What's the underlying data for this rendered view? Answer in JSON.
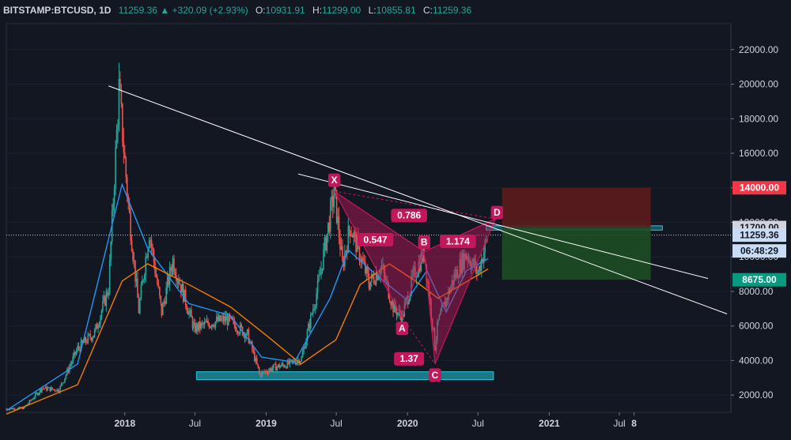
{
  "header": {
    "symbol": "BITSTAMP:BTCUSD, 1D",
    "last": "11259.36",
    "change_arrow": "▲",
    "change": "+320.09 (+2.93%)",
    "o_label": "O:",
    "o_value": "10931.91",
    "h_label": "H:",
    "h_value": "11299.00",
    "l_label": "L:",
    "l_value": "10855.81",
    "c_label": "C:",
    "c_value": "11259.36"
  },
  "colors": {
    "background": "#131722",
    "up": "#26a69a",
    "down": "#ef5350",
    "pattern": "#c2185b",
    "support_zone": "#26c6da",
    "stop_zone": "#5d1b1b",
    "target_zone": "#1e4d24",
    "trendline": "#ffffff",
    "ma_fast": "#2196f3",
    "ma_slow": "#f57c00"
  },
  "chart_data": {
    "type": "line",
    "title": "",
    "xlabel": "",
    "ylabel": "",
    "ylim": [
      1000,
      23500
    ],
    "y_ticks": [
      "2000.00",
      "4000.00",
      "6000.00",
      "8000.00",
      "10000.00",
      "12000.00",
      "14000.00",
      "16000.00",
      "18000.00",
      "20000.00",
      "22000.00"
    ],
    "x_ticks": [
      {
        "label": "2018",
        "date": "2018-01-01",
        "bold": true
      },
      {
        "label": "Jul",
        "date": "2018-07-01",
        "bold": false
      },
      {
        "label": "2019",
        "date": "2019-01-01",
        "bold": true
      },
      {
        "label": "Jul",
        "date": "2019-07-01",
        "bold": false
      },
      {
        "label": "2020",
        "date": "2020-01-01",
        "bold": true
      },
      {
        "label": "Jul",
        "date": "2020-07-01",
        "bold": false
      },
      {
        "label": "2021",
        "date": "2021-01-01",
        "bold": true
      },
      {
        "label": "Jul",
        "date": "2021-07-01",
        "bold": false
      },
      {
        "label": "8",
        "date": "2021-08-08",
        "bold": true
      }
    ],
    "x_range": [
      "2017-03-01",
      "2022-04-15"
    ],
    "series": [
      {
        "type": "candles",
        "x": [
          "2017-03-01",
          "2017-04-15",
          "2017-06-01",
          "2017-07-15",
          "2017-09-01",
          "2017-10-15",
          "2017-11-20",
          "2017-12-17",
          "2018-01-10",
          "2018-02-06",
          "2018-03-05",
          "2018-04-06",
          "2018-05-05",
          "2018-06-29",
          "2018-08-14",
          "2018-09-20",
          "2018-11-14",
          "2018-12-15",
          "2019-01-20",
          "2019-02-28",
          "2019-04-02",
          "2019-05-14",
          "2019-06-26",
          "2019-07-17",
          "2019-08-06",
          "2019-09-24",
          "2019-10-26",
          "2019-11-25",
          "2019-12-18",
          "2020-01-15",
          "2020-02-13",
          "2020-03-12",
          "2020-03-20",
          "2020-04-30",
          "2020-06-01",
          "2020-07-01",
          "2020-07-27"
        ],
        "close": [
          1200,
          1250,
          2400,
          2300,
          4700,
          5600,
          8200,
          19700,
          13000,
          6900,
          11500,
          6800,
          9800,
          5850,
          6200,
          6400,
          5500,
          3200,
          3600,
          3800,
          4100,
          8200,
          13800,
          9500,
          11800,
          8500,
          9400,
          7100,
          6500,
          8800,
          10300,
          4800,
          6200,
          8800,
          10200,
          9100,
          11259
        ]
      },
      {
        "name": "",
        "type": "ma_fast",
        "x": [
          "2017-03-01",
          "2017-09-01",
          "2017-12-25",
          "2018-03-01",
          "2018-06-15",
          "2018-10-01",
          "2018-12-20",
          "2019-03-15",
          "2019-06-15",
          "2019-08-01",
          "2019-10-15",
          "2019-12-31",
          "2020-02-20",
          "2020-04-10",
          "2020-06-01",
          "2020-07-27"
        ],
        "values": [
          1100,
          3800,
          14200,
          10500,
          7300,
          6600,
          4200,
          3900,
          7600,
          10400,
          8900,
          7500,
          9200,
          6800,
          9200,
          9900
        ]
      },
      {
        "name": "",
        "type": "ma_slow",
        "x": [
          "2017-03-01",
          "2017-09-01",
          "2017-12-25",
          "2018-03-01",
          "2018-06-15",
          "2018-10-01",
          "2019-01-10",
          "2019-04-01",
          "2019-06-30",
          "2019-09-01",
          "2019-11-15",
          "2020-01-15",
          "2020-03-20",
          "2020-05-20",
          "2020-07-27"
        ],
        "values": [
          900,
          2600,
          8600,
          9600,
          8400,
          7100,
          5300,
          3800,
          5200,
          8400,
          9600,
          8700,
          7600,
          8400,
          9300
        ]
      }
    ],
    "harmonic_pattern": {
      "points": [
        {
          "label": "X",
          "date": "2019-06-26",
          "value": 13800
        },
        {
          "label": "A",
          "date": "2019-12-18",
          "value": 6500
        },
        {
          "label": "B",
          "date": "2020-02-13",
          "value": 10300
        },
        {
          "label": "C",
          "date": "2020-03-12",
          "value": 3800
        },
        {
          "label": "D",
          "date": "2020-08-15",
          "value": 12200
        }
      ],
      "ratios": [
        {
          "label": "0.547",
          "date": "2019-10-10",
          "value": 11000
        },
        {
          "label": "0.786",
          "date": "2020-01-05",
          "value": 12400
        },
        {
          "label": "1.37",
          "date": "2020-01-05",
          "value": 4100
        },
        {
          "label": "1.174",
          "date": "2020-05-10",
          "value": 10900
        }
      ]
    },
    "trendlines": [
      {
        "from": {
          "date": "2017-11-20",
          "value": 19900
        },
        "to": {
          "date": "2022-04-05",
          "value": 6700
        }
      },
      {
        "from": {
          "date": "2019-03-25",
          "value": 14800
        },
        "to": {
          "date": "2022-02-15",
          "value": 8750
        }
      }
    ],
    "zones": [
      {
        "kind": "support",
        "from_date": "2018-07-05",
        "to_date": "2020-08-10",
        "low": 2900,
        "high": 3350
      },
      {
        "kind": "resistance",
        "from_date": "2020-07-22",
        "to_date": "2021-10-20",
        "low": 11550,
        "high": 11800
      },
      {
        "kind": "stop",
        "from_date": "2020-09-01",
        "to_date": "2021-09-20",
        "low": 11700,
        "high": 14000
      },
      {
        "kind": "target",
        "from_date": "2020-09-01",
        "to_date": "2021-09-20",
        "low": 8675,
        "high": 11700
      }
    ],
    "price_badges": [
      {
        "label": "14000.00",
        "value": 14000,
        "bg": "#f23645",
        "fg": "#ffffff"
      },
      {
        "label": "11700.00",
        "value": 11700,
        "bg": "#d1d4dc",
        "fg": "#131722"
      },
      {
        "label": "11259.36",
        "value": 11259.36,
        "bg": "#c8ddf5",
        "fg": "#131722"
      },
      {
        "label": "06:48:29",
        "value": 10200,
        "bg": "#c8ddf5",
        "fg": "#131722"
      },
      {
        "label": "8675.00",
        "value": 8675,
        "bg": "#089981",
        "fg": "#ffffff"
      }
    ],
    "last_price_line": 11259.36
  }
}
